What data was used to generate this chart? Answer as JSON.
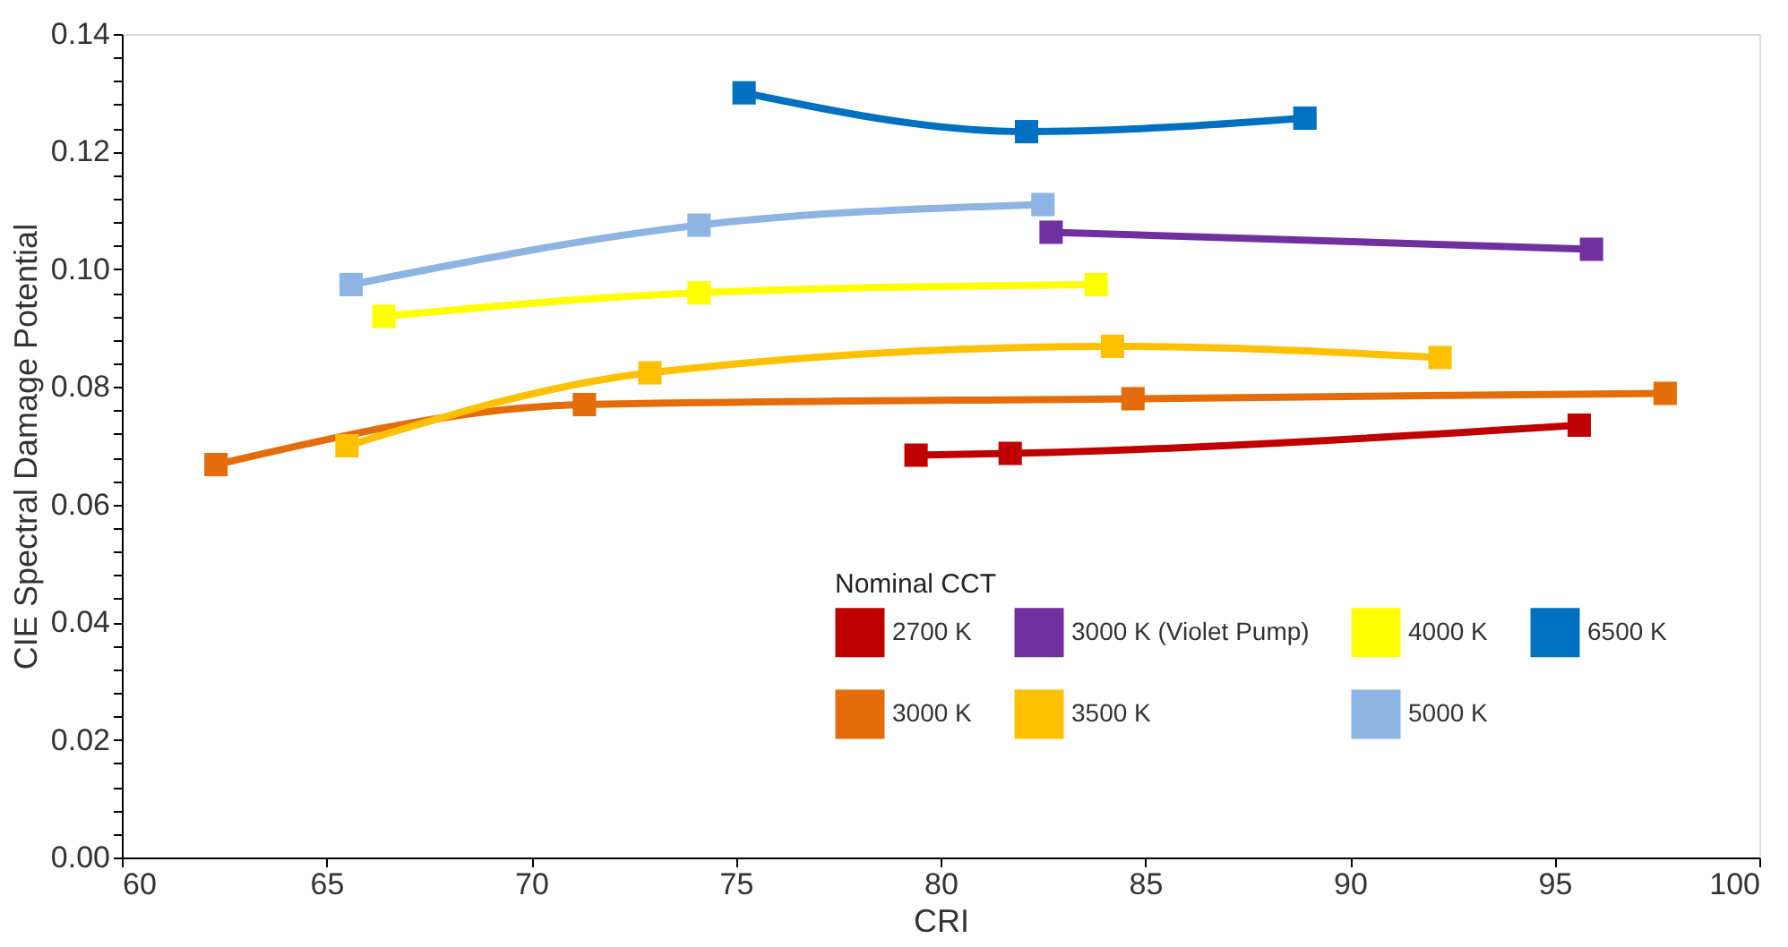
{
  "chart_data": {
    "type": "line",
    "xlabel": "CRI",
    "ylabel": "CIE Spectral Damage Potential",
    "legend_title": "Nominal CCT",
    "legend": "bottom right",
    "marker": "square",
    "grid": false,
    "xlim": [
      60,
      100
    ],
    "xticks": [
      60,
      65,
      70,
      75,
      80,
      85,
      90,
      95,
      100
    ],
    "ylim": [
      0,
      0.14
    ],
    "yticks": [
      {
        "value": 0,
        "label": "0.00"
      },
      {
        "value": 0.004,
        "label": null
      },
      {
        "value": 0.008,
        "label": null
      },
      {
        "value": 0.012,
        "label": null
      },
      {
        "value": 0.016,
        "label": null
      },
      {
        "value": 0.02,
        "label": "0.02"
      },
      {
        "value": 0.024,
        "label": null
      },
      {
        "value": 0.028,
        "label": null
      },
      {
        "value": 0.032,
        "label": null
      },
      {
        "value": 0.036,
        "label": null
      },
      {
        "value": 0.04,
        "label": "0.04"
      },
      {
        "value": 0.044,
        "label": null
      },
      {
        "value": 0.048,
        "label": null
      },
      {
        "value": 0.052,
        "label": null
      },
      {
        "value": 0.056,
        "label": null
      },
      {
        "value": 0.06,
        "label": "0.06"
      },
      {
        "value": 0.064,
        "label": null
      },
      {
        "value": 0.068,
        "label": null
      },
      {
        "value": 0.072,
        "label": null
      },
      {
        "value": 0.076,
        "label": null
      },
      {
        "value": 0.08,
        "label": "0.08"
      },
      {
        "value": 0.084,
        "label": null
      },
      {
        "value": 0.088,
        "label": null
      },
      {
        "value": 0.092,
        "label": null
      },
      {
        "value": 0.096,
        "label": null
      },
      {
        "value": 0.1,
        "label": "0.10"
      },
      {
        "value": 0.104,
        "label": null
      },
      {
        "value": 0.108,
        "label": null
      },
      {
        "value": 0.112,
        "label": null
      },
      {
        "value": 0.116,
        "label": null
      },
      {
        "value": 0.12,
        "label": "0.12"
      },
      {
        "value": 0.124,
        "label": null
      },
      {
        "value": 0.128,
        "label": null
      },
      {
        "value": 0.132,
        "label": null
      },
      {
        "value": 0.136,
        "label": null
      },
      {
        "value": 0.14,
        "label": "0.14"
      }
    ],
    "series": [
      {
        "name": "2700 K",
        "color": "#c00000",
        "x": [
          79.4,
          81.7,
          95.6
        ],
        "values": [
          0.0684,
          0.0687,
          0.0735
        ]
      },
      {
        "name": "3000 K",
        "color": "#e46c0a",
        "x": [
          62.3,
          71.3,
          84.7,
          97.7
        ],
        "values": [
          0.0668,
          0.077,
          0.078,
          0.0789
        ]
      },
      {
        "name": "3000 K (Violet Pump)",
        "color": "#7030a0",
        "x": [
          82.7,
          95.9
        ],
        "values": [
          0.1063,
          0.1034
        ]
      },
      {
        "name": "3500 K",
        "color": "#ffc000",
        "x": [
          65.5,
          72.9,
          84.2,
          92.2
        ],
        "values": [
          0.07,
          0.0824,
          0.0869,
          0.085
        ]
      },
      {
        "name": "4000 K",
        "color": "#ffff00",
        "x": [
          66.4,
          74.1,
          83.8
        ],
        "values": [
          0.092,
          0.096,
          0.0974
        ]
      },
      {
        "name": "5000 K",
        "color": "#8db4e2",
        "x": [
          65.6,
          74.1,
          82.5
        ],
        "values": [
          0.0974,
          0.1075,
          0.111
        ]
      },
      {
        "name": "6500 K",
        "color": "#0070c0",
        "x": [
          75.2,
          82.1,
          88.9
        ],
        "values": [
          0.13,
          0.1234,
          0.1257
        ]
      }
    ]
  }
}
